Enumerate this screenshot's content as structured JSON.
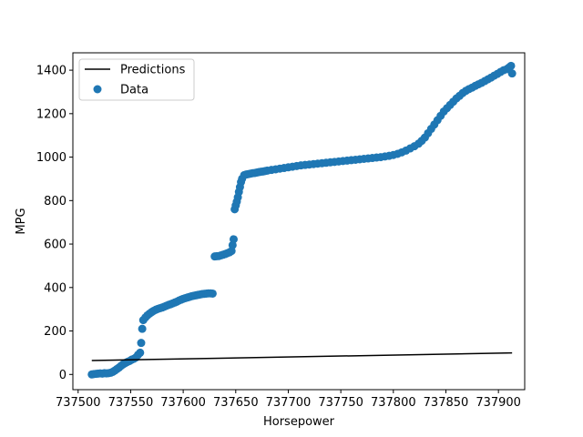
{
  "chart_data": {
    "type": "scatter",
    "title": "",
    "xlabel": "Horsepower",
    "ylabel": "MPG",
    "xlim": [
      737495,
      737925
    ],
    "ylim": [
      -70,
      1480
    ],
    "xticks": [
      737500,
      737550,
      737600,
      737650,
      737700,
      737750,
      737800,
      737850,
      737900
    ],
    "yticks": [
      0,
      200,
      400,
      600,
      800,
      1000,
      1200,
      1400
    ],
    "grid": false,
    "legend_placement": "top-left",
    "colors": {
      "predictions": "#000000",
      "data": "#1f77b4"
    },
    "series": [
      {
        "name": "Predictions",
        "kind": "line",
        "x": [
          737513,
          737913
        ],
        "y": [
          64,
          99
        ]
      },
      {
        "name": "Data",
        "kind": "scatter",
        "x": [
          737513,
          737515,
          737517,
          737519,
          737521,
          737523,
          737525,
          737527,
          737529,
          737531,
          737533,
          737535,
          737537,
          737539,
          737541,
          737543,
          737545,
          737547,
          737549,
          737551,
          737553,
          737555,
          737557,
          737559,
          737560,
          737561,
          737562,
          737564,
          737566,
          737568,
          737570,
          737572,
          737574,
          737576,
          737578,
          737580,
          737582,
          737584,
          737586,
          737588,
          737590,
          737592,
          737594,
          737596,
          737598,
          737600,
          737602,
          737604,
          737606,
          737608,
          737610,
          737612,
          737614,
          737616,
          737618,
          737620,
          737622,
          737624,
          737626,
          737628,
          737630,
          737632,
          737634,
          737636,
          737638,
          737640,
          737642,
          737644,
          737646,
          737647,
          737648,
          737649,
          737650,
          737651,
          737652,
          737653,
          737654,
          737655,
          737656,
          737658,
          737660,
          737662,
          737664,
          737666,
          737668,
          737670,
          737672,
          737674,
          737676,
          737678,
          737680,
          737684,
          737688,
          737692,
          737696,
          737700,
          737704,
          737708,
          737712,
          737716,
          737720,
          737724,
          737728,
          737732,
          737736,
          737740,
          737744,
          737748,
          737752,
          737756,
          737760,
          737764,
          737768,
          737772,
          737776,
          737780,
          737784,
          737788,
          737792,
          737796,
          737800,
          737804,
          737808,
          737812,
          737816,
          737820,
          737824,
          737827,
          737830,
          737833,
          737836,
          737839,
          737842,
          737845,
          737848,
          737851,
          737854,
          737857,
          737860,
          737863,
          737866,
          737869,
          737872,
          737875,
          737878,
          737881,
          737884,
          737887,
          737890,
          737893,
          737896,
          737899,
          737902,
          737905,
          737908,
          737910,
          737912,
          737913
        ],
        "y": [
          0,
          2,
          3,
          4,
          5,
          4,
          6,
          5,
          6,
          8,
          12,
          18,
          25,
          32,
          40,
          47,
          53,
          58,
          62,
          68,
          72,
          78,
          90,
          100,
          145,
          210,
          250,
          262,
          272,
          280,
          287,
          293,
          298,
          302,
          305,
          308,
          312,
          316,
          320,
          323,
          327,
          331,
          335,
          340,
          344,
          348,
          351,
          354,
          357,
          360,
          362,
          364,
          366,
          368,
          370,
          371,
          372,
          373,
          373,
          372,
          543,
          544,
          545,
          548,
          551,
          554,
          558,
          562,
          568,
          595,
          622,
          760,
          778,
          795,
          815,
          840,
          862,
          885,
          900,
          917,
          920,
          922,
          924,
          926,
          927,
          929,
          931,
          933,
          934,
          936,
          938,
          941,
          944,
          947,
          950,
          953,
          956,
          959,
          962,
          964,
          966,
          968,
          970,
          972,
          974,
          976,
          978,
          980,
          982,
          984,
          986,
          988,
          990,
          992,
          994,
          996,
          998,
          1000,
          1003,
          1006,
          1010,
          1015,
          1022,
          1030,
          1040,
          1050,
          1062,
          1075,
          1090,
          1110,
          1130,
          1150,
          1170,
          1190,
          1210,
          1225,
          1240,
          1255,
          1270,
          1282,
          1295,
          1305,
          1313,
          1320,
          1328,
          1335,
          1342,
          1350,
          1358,
          1366,
          1375,
          1383,
          1392,
          1400,
          1405,
          1412,
          1420,
          1385
        ]
      }
    ]
  }
}
